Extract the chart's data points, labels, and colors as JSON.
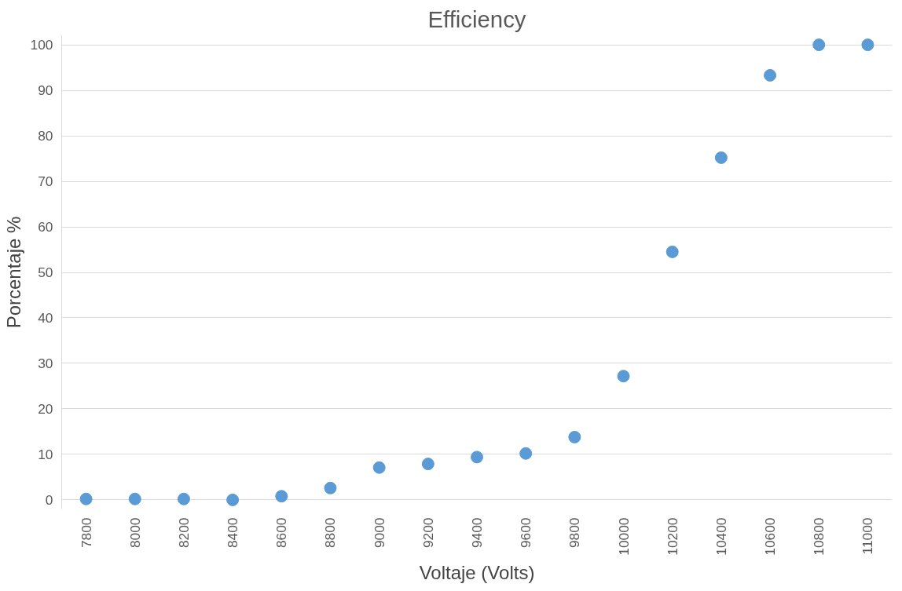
{
  "chart_data": {
    "type": "scatter",
    "title": "Efficiency",
    "xlabel": "Voltaje (Volts)",
    "ylabel": "Porcentaje %",
    "categories": [
      "7800",
      "8000",
      "8200",
      "8400",
      "8600",
      "8800",
      "9000",
      "9200",
      "9400",
      "9600",
      "9800",
      "10000",
      "10200",
      "10400",
      "10600",
      "10800",
      "11000"
    ],
    "series": [
      {
        "color": "#5b9bd5",
        "values": [
          0.2,
          0.2,
          0.2,
          0,
          0.8,
          2.6,
          7.1,
          7.9,
          9.4,
          10.2,
          13.8,
          27.2,
          54.5,
          75.2,
          93.3,
          100,
          100
        ]
      }
    ],
    "ylim": [
      -2,
      102
    ],
    "yticks": [
      0,
      10,
      20,
      30,
      40,
      50,
      60,
      70,
      80,
      90,
      100
    ],
    "grid": "y",
    "marker": "circle"
  }
}
